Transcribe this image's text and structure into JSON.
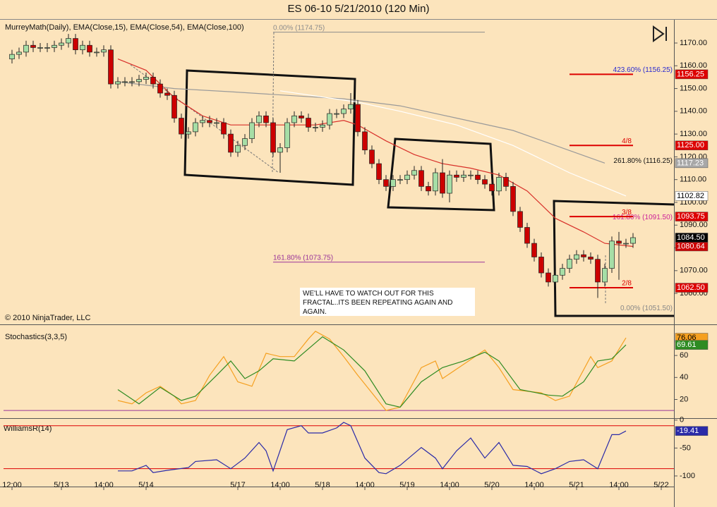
{
  "chart_data": [
    {
      "type": "candlestick",
      "title": "ES 06-10  5/21/2010 (120 Min)",
      "subtitle": "MurreyMath(Daily), EMA(Close,15), EMA(Close,54), EMA(Close,100)",
      "copyright": "© 2010 NinjaTrader, LLC",
      "note": "WE'LL HAVE TO WATCH OUT FOR THIS FRACTAL..ITS BEEN REPEATING AGAIN AND AGAIN.",
      "xlim": [
        -1.2,
        93.8
      ],
      "ylim": [
        1046.4,
        1179.6
      ],
      "yticks": [
        {
          "value": 1060,
          "label": "1060.00"
        },
        {
          "value": 1070,
          "label": "1070.00"
        },
        {
          "value": 1080,
          "label": "1080.00"
        },
        {
          "value": 1090,
          "label": "1090.00"
        },
        {
          "value": 1100,
          "label": "1100.00"
        },
        {
          "value": 1110,
          "label": "1110.00"
        },
        {
          "value": 1120,
          "label": "1120.00"
        },
        {
          "value": 1130,
          "label": "1130.00"
        },
        {
          "value": 1140,
          "label": "1140.00"
        },
        {
          "value": 1150,
          "label": "1150.00"
        },
        {
          "value": 1160,
          "label": "1160.00"
        },
        {
          "value": 1170,
          "label": "1170.00"
        }
      ],
      "up_color": "#a6dea6",
      "down_color": "#cc0000",
      "last_label": "1084.50",
      "open": [
        1163,
        1165,
        1166,
        1169,
        1168,
        1168,
        1168,
        1169,
        1170,
        1172,
        1167,
        1169,
        1166,
        1166,
        1167,
        1152,
        1153,
        1153,
        1153,
        1154,
        1155,
        1152,
        1148,
        1147,
        1137,
        1130,
        1131,
        1135,
        1136,
        1135,
        1135,
        1130,
        1122,
        1125,
        1128,
        1135,
        1138,
        1135,
        1122,
        1124,
        1135,
        1138,
        1137,
        1133,
        1133,
        1134,
        1139,
        1139,
        1141,
        1143,
        1131,
        1123,
        1117,
        1110,
        1107,
        1110,
        1110,
        1112,
        1114,
        1107,
        1105,
        1113,
        1104,
        1112,
        1111,
        1112,
        1112,
        1110,
        1108,
        1105,
        1111,
        1107,
        1096,
        1089,
        1082,
        1076,
        1069,
        1065,
        1068,
        1071,
        1075,
        1077,
        1076,
        1075,
        1065,
        1071,
        1083,
        1082,
        1082
      ],
      "high": [
        1167,
        1168,
        1171,
        1171,
        1170,
        1170,
        1171,
        1172,
        1174,
        1174,
        1171,
        1171,
        1168,
        1169,
        1169,
        1155,
        1155,
        1155,
        1156,
        1157,
        1157,
        1154,
        1150,
        1149,
        1139,
        1133,
        1137,
        1138,
        1138,
        1137,
        1137,
        1132,
        1127,
        1130,
        1137,
        1140,
        1140,
        1137,
        1126,
        1137,
        1140,
        1140,
        1139,
        1135,
        1136,
        1141,
        1141,
        1143,
        1148,
        1145,
        1133,
        1125,
        1119,
        1112,
        1112,
        1112,
        1114,
        1116,
        1116,
        1109,
        1115,
        1119,
        1114,
        1114,
        1114,
        1114,
        1114,
        1112,
        1110,
        1113,
        1113,
        1109,
        1098,
        1091,
        1084,
        1078,
        1071,
        1070,
        1073,
        1077,
        1079,
        1079,
        1078,
        1077,
        1073,
        1085,
        1087,
        1084,
        1086.5
      ],
      "low": [
        1161,
        1163,
        1164,
        1166,
        1166,
        1166,
        1166,
        1167,
        1168,
        1165,
        1165,
        1164,
        1164,
        1164,
        1150,
        1150,
        1151,
        1151,
        1151,
        1152,
        1150,
        1146,
        1145,
        1135,
        1128,
        1128,
        1129,
        1133,
        1133,
        1133,
        1128,
        1120,
        1120,
        1123,
        1126,
        1133,
        1133,
        1120,
        1113,
        1122,
        1133,
        1135,
        1131,
        1131,
        1131,
        1132,
        1137,
        1137,
        1139,
        1129,
        1121,
        1115,
        1108,
        1105,
        1105,
        1108,
        1108,
        1110,
        1105,
        1103,
        1103,
        1102,
        1100,
        1109,
        1109,
        1110,
        1108,
        1106,
        1103,
        1103,
        1105,
        1094,
        1087,
        1080,
        1074,
        1067,
        1063,
        1063,
        1066,
        1069,
        1073,
        1074,
        1073,
        1058,
        1063,
        1069,
        1066,
        1080,
        1080
      ],
      "close": [
        1165,
        1166,
        1169,
        1168,
        1168,
        1168,
        1169,
        1170,
        1172,
        1167,
        1169,
        1166,
        1166,
        1167,
        1152,
        1153,
        1153,
        1153,
        1154,
        1155,
        1152,
        1148,
        1147,
        1137,
        1130,
        1131,
        1135,
        1136,
        1135,
        1135,
        1130,
        1122,
        1125,
        1128,
        1135,
        1138,
        1135,
        1122,
        1124,
        1135,
        1138,
        1137,
        1133,
        1133,
        1134,
        1139,
        1139,
        1141,
        1143,
        1131,
        1123,
        1117,
        1110,
        1107,
        1110,
        1110,
        1112,
        1114,
        1107,
        1105,
        1113,
        1104,
        1112,
        1111,
        1112,
        1112,
        1110,
        1108,
        1105,
        1111,
        1107,
        1096,
        1089,
        1082,
        1076,
        1069,
        1065,
        1068,
        1071,
        1075,
        1077,
        1076,
        1075,
        1065,
        1071,
        1083,
        1082,
        1082,
        1084.5
      ],
      "series": [
        {
          "color": "#d8302a",
          "box": "#cc0000",
          "last_label": "1080.64",
          "x": [
            15,
            19,
            23,
            27,
            31,
            35,
            39,
            43,
            47,
            49,
            53,
            57,
            61,
            65,
            69,
            73,
            77,
            81,
            84,
            88
          ],
          "values": [
            1163,
            1158,
            1146,
            1138,
            1134,
            1134,
            1134,
            1134,
            1136,
            1134,
            1127,
            1121,
            1117,
            1115,
            1112,
            1105,
            1093,
            1087,
            1082,
            1080.64
          ]
        },
        {
          "color": "#9a9a9a",
          "box": "#a8a8a8",
          "last_label": "1117.23",
          "x": [
            15,
            23,
            31,
            39,
            47,
            55,
            63,
            71,
            77,
            84
          ],
          "values": [
            1153,
            1150,
            1148.6,
            1147,
            1145.5,
            1142.4,
            1137,
            1131.6,
            1125,
            1117.23
          ]
        },
        {
          "color": "#ffffff",
          "box": "#ffffff",
          "last_label": "1102.82",
          "x": [
            38,
            49,
            55,
            63,
            71,
            79,
            87
          ],
          "values": [
            1149,
            1144,
            1140,
            1134,
            1125,
            1113,
            1102.82
          ]
        }
      ],
      "levels_x": [
        79,
        88
      ],
      "levels_color": "#dd0000",
      "levels": [
        {
          "value": 1156.25,
          "box": "1156.25"
        },
        {
          "value": 1125,
          "label": "4/8",
          "box": "1125.00"
        },
        {
          "value": 1093.75,
          "label": "3/8",
          "box": "1093.75"
        },
        {
          "value": 1062.5,
          "label": "2/8",
          "box": "1062.50"
        }
      ],
      "fibs": [
        {
          "text": "0.00% (1174.75)",
          "value": 1174.75,
          "color": "#8c8c8c",
          "x": [
            37,
            67
          ]
        },
        {
          "text": "423.60% (1156.25)",
          "value": 1156.25,
          "color": "#2a2ad0"
        },
        {
          "text": "261.80% (1116.25)",
          "value": 1116.25,
          "color": "#111111"
        },
        {
          "text": "161.80% (1091.50)",
          "value": 1091.5,
          "color": "#cc2299"
        },
        {
          "text": "161.80% (1073.75)",
          "value": 1073.75,
          "color": "#993399",
          "x": [
            37,
            67
          ]
        },
        {
          "text": "0.00% (1051.50)",
          "value": 1051.5,
          "color": "#888888"
        }
      ]
    },
    {
      "type": "line",
      "title": "Stochastics(3,3,5)",
      "xlim": [
        -1.2,
        93.8
      ],
      "ylim": [
        3,
        87
      ],
      "yticks": [
        20,
        40,
        60
      ],
      "level": 10,
      "level_color": "#993399",
      "series": [
        {
          "color": "#f5a020",
          "last_label": "76.06",
          "x": [
            15,
            17,
            19,
            21,
            23,
            24,
            26,
            28,
            30,
            32,
            34,
            36,
            38,
            40,
            42,
            43,
            45,
            47,
            49,
            51,
            53,
            55,
            58,
            60,
            61,
            64,
            67,
            69,
            71,
            75,
            77,
            79,
            82,
            83,
            85,
            87
          ],
          "values": [
            19,
            16,
            26,
            32,
            23,
            16,
            19,
            42,
            59,
            36,
            32,
            62,
            59,
            59,
            75,
            82,
            75,
            59,
            42,
            26,
            10,
            13,
            49,
            55,
            39,
            52,
            65,
            49,
            29,
            26,
            19,
            23,
            59,
            49,
            55,
            76.06
          ]
        },
        {
          "color": "#2e8b22",
          "last_label": "69.61",
          "x": [
            15,
            18,
            21,
            24,
            26,
            29,
            31,
            33,
            35,
            37,
            40,
            44,
            47,
            50,
            53,
            55,
            58,
            61,
            64,
            67,
            69,
            72,
            76,
            78,
            81,
            83,
            85,
            87
          ],
          "values": [
            29,
            16,
            31,
            19,
            23,
            42,
            55,
            39,
            46,
            57,
            55,
            77,
            65,
            46,
            16,
            13,
            36,
            49,
            55,
            63,
            55,
            29,
            24,
            23,
            36,
            55,
            57,
            69.61
          ]
        }
      ]
    },
    {
      "type": "line",
      "title": "WilliamsR(14)",
      "xlim": [
        -1.2,
        93.8
      ],
      "ylim": [
        -119,
        1
      ],
      "yticks": [
        0,
        -50,
        -100
      ],
      "levels": [
        -10,
        -87
      ],
      "level_color": "#dd0000",
      "xticks": [
        {
          "value": 0,
          "label": "12:00"
        },
        {
          "value": 7,
          "label": "5/13"
        },
        {
          "value": 13,
          "label": "14:00"
        },
        {
          "value": 19,
          "label": "5/14"
        },
        {
          "value": 32,
          "label": "5/17"
        },
        {
          "value": 38,
          "label": "14:00"
        },
        {
          "value": 44,
          "label": "5/18"
        },
        {
          "value": 50,
          "label": "14:00"
        },
        {
          "value": 56,
          "label": "5/19"
        },
        {
          "value": 62,
          "label": "14:00"
        },
        {
          "value": 68,
          "label": "5/20"
        },
        {
          "value": 74,
          "label": "14:00"
        },
        {
          "value": 80,
          "label": "5/21"
        },
        {
          "value": 86,
          "label": "14:00"
        },
        {
          "value": 92,
          "label": "5/22"
        }
      ],
      "series": [
        {
          "color": "#2a2aa8",
          "last_label": "-19.41",
          "x": [
            15,
            17,
            19,
            20,
            22,
            25,
            26,
            29,
            31,
            33,
            35,
            36,
            37,
            39,
            41,
            42,
            44,
            46,
            47,
            48,
            50,
            52,
            53,
            55,
            58,
            60,
            61,
            63,
            65,
            67,
            69,
            71,
            73,
            75,
            77,
            79,
            81,
            83,
            85,
            86,
            87
          ],
          "values": [
            -91,
            -91,
            -81,
            -94,
            -90,
            -85,
            -74,
            -71,
            -87,
            -68,
            -40,
            -55,
            -91,
            -17,
            -10,
            -23,
            -23,
            -14,
            -4,
            -10,
            -68,
            -94,
            -96,
            -81,
            -49,
            -68,
            -87,
            -55,
            -32,
            -68,
            -40,
            -81,
            -83,
            -96,
            -87,
            -74,
            -71,
            -87,
            -26,
            -26,
            -19.41
          ]
        }
      ]
    }
  ]
}
